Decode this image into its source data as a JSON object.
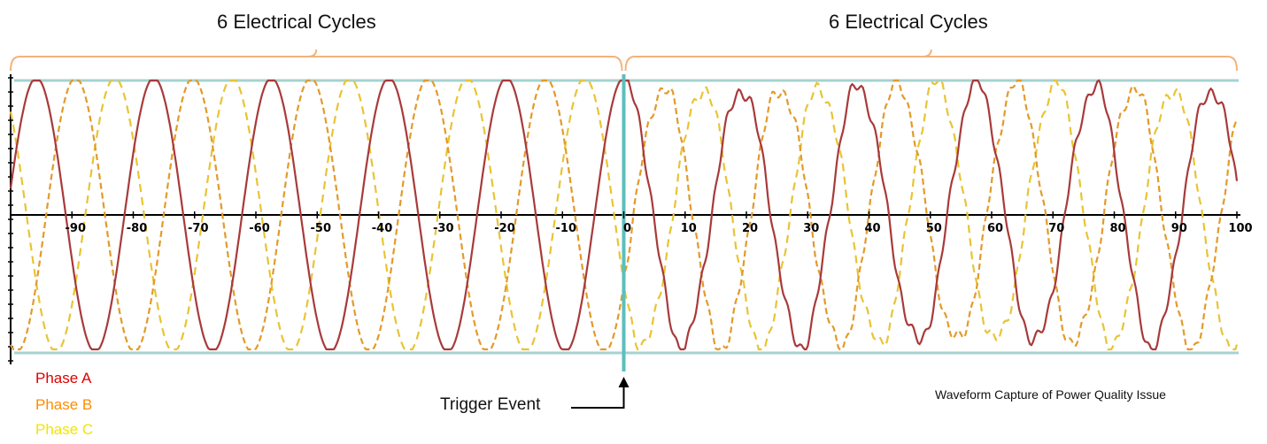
{
  "chart_data": {
    "type": "line",
    "title": "",
    "caption": "Waveform Capture of Power Quality Issue",
    "xlabel": "",
    "ylabel": "",
    "xlim": [
      -100,
      100
    ],
    "x_ticks": [
      -90,
      -80,
      -70,
      -60,
      -50,
      -40,
      -30,
      -20,
      -10,
      0,
      10,
      20,
      30,
      40,
      50,
      60,
      70,
      80,
      90,
      100
    ],
    "grid": false,
    "legend_position": "bottom-left",
    "cycles_per_window": 6,
    "windows": [
      {
        "label": "6 Electrical Cycles",
        "x_range": [
          -100,
          0
        ]
      },
      {
        "label": "6 Electrical Cycles",
        "x_range": [
          0,
          100
        ]
      }
    ],
    "annotation": {
      "label": "Trigger Event",
      "x": 0
    },
    "series": [
      {
        "name": "Phase A",
        "color": "#e00000",
        "line_color": "#a83a3a",
        "phase_deg": 0,
        "x_peaks": [
          -95.8,
          -80.8,
          -65.8,
          -50.8,
          -35.8,
          -20.8,
          -5.8,
          10.8,
          25.8,
          40.8,
          55.8,
          70.8,
          85.8
        ]
      },
      {
        "name": "Phase B",
        "color": "#ff8c00",
        "line_color": "#e39a2a",
        "phase_deg": 120
      },
      {
        "name": "Phase C",
        "color": "#f2e500",
        "line_color": "#e8c435",
        "phase_deg": 240
      }
    ],
    "colors": {
      "bracket": "#f2b37c",
      "trigger_line": "#5bbfbd",
      "clip_line": "#a6d3cf",
      "axis": "#000000"
    }
  },
  "labels": {
    "heading_left": "6 Electrical Cycles",
    "heading_right": "6 Electrical Cycles",
    "trigger": "Trigger Event",
    "caption": "Waveform Capture of Power Quality Issue",
    "legend": [
      "Phase A",
      "Phase B",
      "Phase C"
    ]
  }
}
